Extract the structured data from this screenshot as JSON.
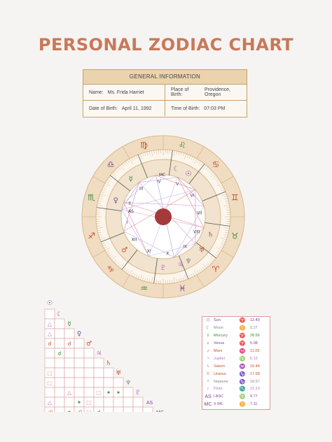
{
  "title": "PERSONAL ZODIAC CHART",
  "info": {
    "heading": "GENERAL INFORMATION",
    "name_label": "Name:",
    "name_value": "Ms. Frida Harriet",
    "place_label": "Place of Birth:",
    "place_value": "Providence, Oregon",
    "date_label": "Date of Birth:",
    "date_value": "April 11, 1992",
    "time_label": "Time of Birth:",
    "time_value": "07:03 PM"
  },
  "colors": {
    "title": "#c9785a",
    "ring": "#f0dcc0",
    "ring_border": "#d8b98e",
    "center": "#a33a3a",
    "table_border": "#d99c9c",
    "accent_purple": "#7b3fa0"
  },
  "zodiac_ring": [
    {
      "glyph": "♋",
      "color": "#c7502a"
    },
    {
      "glyph": "♊",
      "color": "#c7502a"
    },
    {
      "glyph": "♉",
      "color": "#3a8a3a"
    },
    {
      "glyph": "♈",
      "color": "#c7502a"
    },
    {
      "glyph": "♓",
      "color": "#7b3fa0"
    },
    {
      "glyph": "♒",
      "color": "#3a8a3a"
    },
    {
      "glyph": "♑",
      "color": "#c7502a"
    },
    {
      "glyph": "♐",
      "color": "#c7502a"
    },
    {
      "glyph": "♏",
      "color": "#3a8a3a"
    },
    {
      "glyph": "♎",
      "color": "#7b3fa0"
    },
    {
      "glyph": "♍",
      "color": "#c7502a"
    },
    {
      "glyph": "♌",
      "color": "#3a8a3a"
    }
  ],
  "houses": [
    "I",
    "II",
    "III",
    "IV",
    "V",
    "VI",
    "VII",
    "VIII",
    "IX",
    "X",
    "XI",
    "XII"
  ],
  "angles": {
    "ascendant": "AS",
    "midheaven": "MC"
  },
  "planets": [
    {
      "glyph": "☉",
      "name": "Sun",
      "sign": "♈",
      "degree": "12.49",
      "color": "#7b3fa0"
    },
    {
      "glyph": "☾",
      "name": "Moon",
      "sign": "♊",
      "degree": "5.27",
      "color": "#888888"
    },
    {
      "glyph": "☿",
      "name": "Mercury",
      "sign": "♈",
      "degree": "28.56",
      "color": "#3a8a3a"
    },
    {
      "glyph": "♀",
      "name": "Venus",
      "sign": "♈",
      "degree": "5.08",
      "color": "#7b3fa0"
    },
    {
      "glyph": "♂",
      "name": "Mars",
      "sign": "♓",
      "degree": "11.09",
      "color": "#c7502a"
    },
    {
      "glyph": "♃",
      "name": "Jupiter",
      "sign": "♍",
      "degree": "5.12",
      "color": "#c070c0"
    },
    {
      "glyph": "♄",
      "name": "Saturn",
      "sign": "♒",
      "degree": "16.44",
      "color": "#c7502a"
    },
    {
      "glyph": "♅",
      "name": "Uranus",
      "sign": "♑",
      "degree": "17.58",
      "color": "#c7502a"
    },
    {
      "glyph": "♆",
      "name": "Neptune",
      "sign": "♑",
      "degree": "18.57",
      "color": "#888888"
    },
    {
      "glyph": "♇",
      "name": "Pluto",
      "sign": "♏",
      "degree": "22.23",
      "color": "#c070c0"
    },
    {
      "glyph": "AS",
      "name": "I ASC",
      "sign": "♍",
      "degree": "9.77",
      "color": "#7b3fa0"
    },
    {
      "glyph": "MC",
      "name": "X MC",
      "sign": "♊",
      "degree": "7.11",
      "color": "#7b3fa0"
    }
  ],
  "aspect_grid": {
    "labels": [
      "☉",
      "☾",
      "☿",
      "♀",
      "♂",
      "♃",
      "♄",
      "♅",
      "♆",
      "♇",
      "AS",
      "MC"
    ],
    "label_colors": [
      "#7b3fa0",
      "#888888",
      "#3a8a3a",
      "#7b3fa0",
      "#c7502a",
      "#c070c0",
      "#c7502a",
      "#c7502a",
      "#888888",
      "#c070c0",
      "#7b3fa0",
      "#7b3fa0"
    ],
    "cells": [
      {
        "row": 1,
        "col": 0,
        "glyph": "△",
        "color": "#c070c0"
      },
      {
        "row": 2,
        "col": 0,
        "glyph": "△",
        "color": "#c070c0"
      },
      {
        "row": 3,
        "col": 0,
        "glyph": "☌",
        "color": "#c7502a"
      },
      {
        "row": 3,
        "col": 2,
        "glyph": "☌",
        "color": "#c7502a"
      },
      {
        "row": 4,
        "col": 1,
        "glyph": "☌",
        "color": "#3a8a3a"
      },
      {
        "row": 6,
        "col": 0,
        "glyph": "□",
        "color": "#e0a0a0"
      },
      {
        "row": 7,
        "col": 0,
        "glyph": "□",
        "color": "#e0a0a0"
      },
      {
        "row": 8,
        "col": 2,
        "glyph": "△",
        "color": "#c070c0"
      },
      {
        "row": 8,
        "col": 5,
        "glyph": "□",
        "color": "#e0a0a0"
      },
      {
        "row": 8,
        "col": 6,
        "glyph": "✶",
        "color": "#3a8a3a"
      },
      {
        "row": 8,
        "col": 7,
        "glyph": "✶",
        "color": "#3a8a3a"
      },
      {
        "row": 9,
        "col": 0,
        "glyph": "△",
        "color": "#c070c0"
      },
      {
        "row": 9,
        "col": 3,
        "glyph": "✶",
        "color": "#3a8a3a"
      },
      {
        "row": 9,
        "col": 4,
        "glyph": "□",
        "color": "#e0a0a0"
      },
      {
        "row": 10,
        "col": 0,
        "glyph": "☍",
        "color": "#c7502a"
      },
      {
        "row": 10,
        "col": 2,
        "glyph": "✶",
        "color": "#3a8a3a"
      },
      {
        "row": 10,
        "col": 3,
        "glyph": "☍",
        "color": "#c7502a"
      },
      {
        "row": 10,
        "col": 4,
        "glyph": "□",
        "color": "#e0a0a0"
      },
      {
        "row": 10,
        "col": 5,
        "glyph": "☌",
        "color": "#3a8a3a"
      }
    ]
  }
}
